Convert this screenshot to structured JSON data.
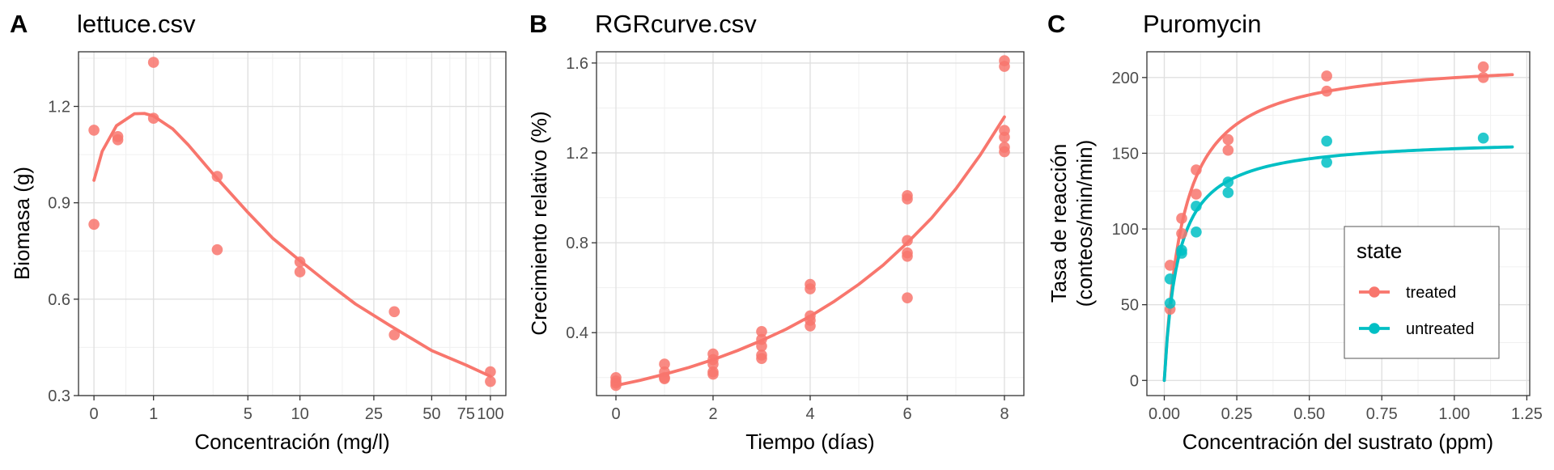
{
  "chart_data": [
    {
      "panel": "A",
      "type": "scatter",
      "title": "lettuce.csv",
      "xlabel": "Concentración (mg/l)",
      "ylabel": "Biomasa (g)",
      "x_scale": "log1p",
      "xlim": [
        0,
        100
      ],
      "ylim": [
        0.3,
        1.37
      ],
      "x_ticks": [
        0,
        1,
        5,
        10,
        25,
        50,
        75,
        100
      ],
      "x_tick_labels": [
        "0",
        "1",
        "5",
        "10",
        "25",
        "50",
        "75",
        "100"
      ],
      "y_ticks": [
        0.3,
        0.6,
        0.9,
        1.2
      ],
      "y_tick_labels": [
        "0.3",
        "0.6",
        "0.9",
        "1.2"
      ],
      "grid": true,
      "color": "#F8766D",
      "points": [
        {
          "x": 0,
          "y": 1.126
        },
        {
          "x": 0,
          "y": 0.833
        },
        {
          "x": 0.32,
          "y": 1.106
        },
        {
          "x": 0.32,
          "y": 1.096
        },
        {
          "x": 1,
          "y": 1.337
        },
        {
          "x": 1,
          "y": 1.163
        },
        {
          "x": 3.2,
          "y": 0.982
        },
        {
          "x": 3.2,
          "y": 0.754
        },
        {
          "x": 10,
          "y": 0.716
        },
        {
          "x": 10,
          "y": 0.685
        },
        {
          "x": 32,
          "y": 0.561
        },
        {
          "x": 32,
          "y": 0.489
        },
        {
          "x": 100,
          "y": 0.374
        },
        {
          "x": 100,
          "y": 0.344
        }
      ],
      "fit_curve": [
        {
          "x": 0,
          "y": 0.97
        },
        {
          "x": 0.1,
          "y": 1.06
        },
        {
          "x": 0.3,
          "y": 1.14
        },
        {
          "x": 0.6,
          "y": 1.177
        },
        {
          "x": 0.8,
          "y": 1.178
        },
        {
          "x": 1,
          "y": 1.17
        },
        {
          "x": 1.5,
          "y": 1.13
        },
        {
          "x": 2,
          "y": 1.08
        },
        {
          "x": 3,
          "y": 0.99
        },
        {
          "x": 5,
          "y": 0.87
        },
        {
          "x": 7,
          "y": 0.79
        },
        {
          "x": 10,
          "y": 0.72
        },
        {
          "x": 15,
          "y": 0.64
        },
        {
          "x": 20,
          "y": 0.585
        },
        {
          "x": 30,
          "y": 0.52
        },
        {
          "x": 50,
          "y": 0.44
        },
        {
          "x": 75,
          "y": 0.395
        },
        {
          "x": 100,
          "y": 0.36
        }
      ]
    },
    {
      "panel": "B",
      "type": "scatter",
      "title": "RGRcurve.csv",
      "xlabel": "Tiempo (días)",
      "ylabel": "Crecimiento relativo (%)",
      "xlim": [
        -0.4,
        8.4
      ],
      "ylim": [
        0.12,
        1.65
      ],
      "x_ticks": [
        0,
        2,
        4,
        6,
        8
      ],
      "x_tick_labels": [
        "0",
        "2",
        "4",
        "6",
        "8"
      ],
      "y_ticks": [
        0.4,
        0.8,
        1.2,
        1.6
      ],
      "y_tick_labels": [
        "0.4",
        "0.8",
        "1.2",
        "1.6"
      ],
      "grid": true,
      "color": "#F8766D",
      "points": [
        {
          "x": 0,
          "y": 0.2
        },
        {
          "x": 0,
          "y": 0.185
        },
        {
          "x": 0,
          "y": 0.175
        },
        {
          "x": 0,
          "y": 0.165
        },
        {
          "x": 1,
          "y": 0.26
        },
        {
          "x": 1,
          "y": 0.225
        },
        {
          "x": 1,
          "y": 0.2
        },
        {
          "x": 1,
          "y": 0.195
        },
        {
          "x": 2,
          "y": 0.305
        },
        {
          "x": 2,
          "y": 0.28
        },
        {
          "x": 2,
          "y": 0.26
        },
        {
          "x": 2,
          "y": 0.225
        },
        {
          "x": 2,
          "y": 0.215
        },
        {
          "x": 3,
          "y": 0.405
        },
        {
          "x": 3,
          "y": 0.37
        },
        {
          "x": 3,
          "y": 0.34
        },
        {
          "x": 3,
          "y": 0.3
        },
        {
          "x": 3,
          "y": 0.285
        },
        {
          "x": 4,
          "y": 0.615
        },
        {
          "x": 4,
          "y": 0.595
        },
        {
          "x": 4,
          "y": 0.475
        },
        {
          "x": 4,
          "y": 0.455
        },
        {
          "x": 4,
          "y": 0.43
        },
        {
          "x": 6,
          "y": 1.01
        },
        {
          "x": 6,
          "y": 0.995
        },
        {
          "x": 6,
          "y": 0.81
        },
        {
          "x": 6,
          "y": 0.755
        },
        {
          "x": 6,
          "y": 0.74
        },
        {
          "x": 6,
          "y": 0.555
        },
        {
          "x": 8,
          "y": 1.61
        },
        {
          "x": 8,
          "y": 1.585
        },
        {
          "x": 8,
          "y": 1.3
        },
        {
          "x": 8,
          "y": 1.27
        },
        {
          "x": 8,
          "y": 1.225
        },
        {
          "x": 8,
          "y": 1.205
        }
      ],
      "fit_curve": [
        {
          "x": 0,
          "y": 0.165
        },
        {
          "x": 0.5,
          "y": 0.188
        },
        {
          "x": 1,
          "y": 0.215
        },
        {
          "x": 1.5,
          "y": 0.245
        },
        {
          "x": 2,
          "y": 0.28
        },
        {
          "x": 2.5,
          "y": 0.32
        },
        {
          "x": 3,
          "y": 0.365
        },
        {
          "x": 3.5,
          "y": 0.415
        },
        {
          "x": 4,
          "y": 0.473
        },
        {
          "x": 4.5,
          "y": 0.54
        },
        {
          "x": 5,
          "y": 0.615
        },
        {
          "x": 5.5,
          "y": 0.7
        },
        {
          "x": 6,
          "y": 0.8
        },
        {
          "x": 6.5,
          "y": 0.91
        },
        {
          "x": 7,
          "y": 1.04
        },
        {
          "x": 7.5,
          "y": 1.19
        },
        {
          "x": 8,
          "y": 1.36
        }
      ]
    },
    {
      "panel": "C",
      "type": "scatter",
      "title": "Puromycin",
      "xlabel": "Concentración del sustrato (ppm)",
      "ylabel_lines": [
        "Tasa de reacción",
        "(conteos/min/min)"
      ],
      "xlim": [
        -0.06,
        1.26
      ],
      "ylim": [
        -10,
        217
      ],
      "x_ticks": [
        0,
        0.25,
        0.5,
        0.75,
        1,
        1.25
      ],
      "x_tick_labels": [
        "0.00",
        "0.25",
        "0.50",
        "0.75",
        "1.00",
        "1.25"
      ],
      "y_ticks": [
        0,
        50,
        100,
        150,
        200
      ],
      "y_tick_labels": [
        "0",
        "50",
        "100",
        "150",
        "200"
      ],
      "grid": true,
      "legend": {
        "title": "state",
        "position": "bottom-right"
      },
      "series": [
        {
          "name": "treated",
          "color": "#F8766D",
          "points": [
            {
              "x": 0.02,
              "y": 76
            },
            {
              "x": 0.02,
              "y": 47
            },
            {
              "x": 0.06,
              "y": 97
            },
            {
              "x": 0.06,
              "y": 107
            },
            {
              "x": 0.11,
              "y": 123
            },
            {
              "x": 0.11,
              "y": 139
            },
            {
              "x": 0.22,
              "y": 159
            },
            {
              "x": 0.22,
              "y": 152
            },
            {
              "x": 0.56,
              "y": 191
            },
            {
              "x": 0.56,
              "y": 201
            },
            {
              "x": 1.1,
              "y": 207
            },
            {
              "x": 1.1,
              "y": 200
            }
          ],
          "fit": {
            "model": "michaelis-menten",
            "Vm": 212.7,
            "K": 0.0641
          }
        },
        {
          "name": "untreated",
          "color": "#00BFC4",
          "points": [
            {
              "x": 0.02,
              "y": 67
            },
            {
              "x": 0.02,
              "y": 51
            },
            {
              "x": 0.06,
              "y": 84
            },
            {
              "x": 0.06,
              "y": 86
            },
            {
              "x": 0.11,
              "y": 98
            },
            {
              "x": 0.11,
              "y": 115
            },
            {
              "x": 0.22,
              "y": 131
            },
            {
              "x": 0.22,
              "y": 124
            },
            {
              "x": 0.56,
              "y": 144
            },
            {
              "x": 0.56,
              "y": 158
            },
            {
              "x": 1.1,
              "y": 160
            }
          ],
          "fit": {
            "model": "michaelis-menten",
            "Vm": 160.3,
            "K": 0.0477
          }
        }
      ]
    }
  ]
}
